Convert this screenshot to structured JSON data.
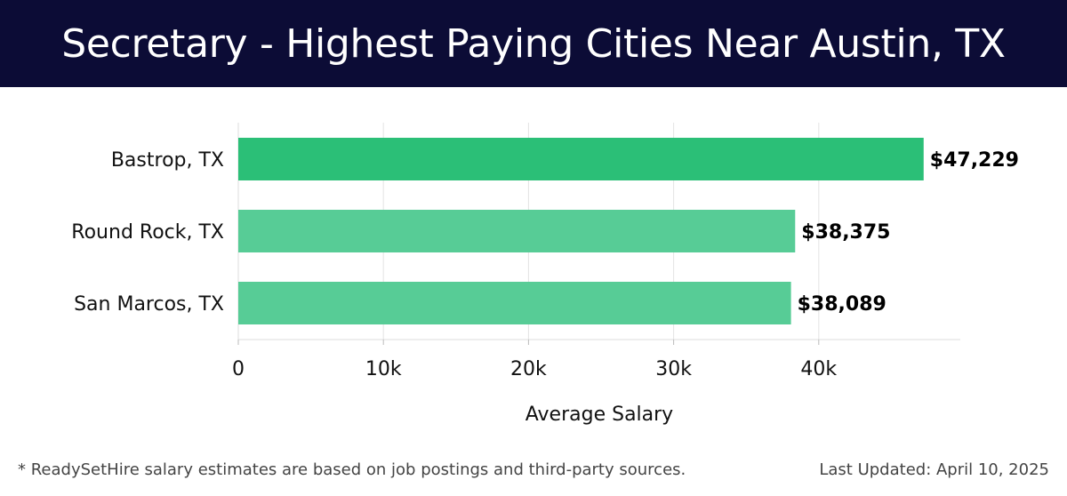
{
  "header": {
    "title": "Secretary - Highest Paying Cities Near Austin, TX"
  },
  "chart_data": {
    "type": "bar",
    "orientation": "horizontal",
    "categories": [
      "Bastrop, TX",
      "Round Rock, TX",
      "San Marcos, TX"
    ],
    "values": [
      47229,
      38375,
      38089
    ],
    "value_labels": [
      "$47,229",
      "$38,375",
      "$38,089"
    ],
    "xlabel": "Average Salary",
    "ylabel": "",
    "xlim": [
      0,
      50000
    ],
    "xticks": [
      0,
      10000,
      20000,
      30000,
      40000
    ],
    "xtick_labels": [
      "0",
      "10k",
      "20k",
      "30k",
      "40k"
    ],
    "grid": "vertical",
    "bar_colors": [
      "#2bbf77",
      "#57cc96",
      "#57cc96"
    ]
  },
  "footer": {
    "note": "* ReadySetHire salary estimates are based on job postings and third-party sources.",
    "updated": "Last Updated: April 10, 2025"
  }
}
